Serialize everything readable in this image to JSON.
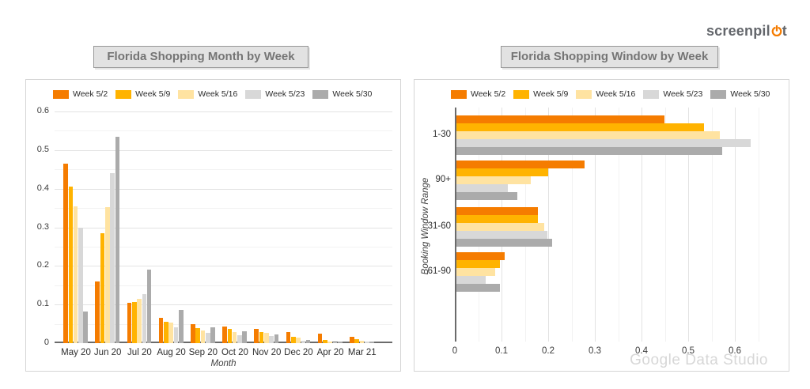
{
  "logo": {
    "text_pre": "screenpil",
    "text_post": "t",
    "full_name": "screenpilot",
    "power_icon_color": "#F57C00",
    "text_color": "#63666B"
  },
  "colors": {
    "week_5_2": "#F57C00",
    "week_5_9": "#FFB300",
    "week_5_16": "#FFE3A1",
    "week_5_23": "#D8D8D8",
    "week_5_30": "#ABABAB",
    "title_box_bg": "#E2E2E2",
    "title_text": "#757575"
  },
  "watermark": "Google Data Studio",
  "chart_data": [
    {
      "type": "bar",
      "orientation": "vertical",
      "title": "Florida Shopping Month by Week",
      "xlabel": "Month",
      "ylabel": "",
      "ylim": [
        0,
        0.6
      ],
      "y_ticks": [
        "0",
        "0.1",
        "0.2",
        "0.3",
        "0.4",
        "0.5",
        "0.6"
      ],
      "grid": "horizontal major 0.1, minor 0.05",
      "legend_position": "top",
      "categories": [
        "May 20",
        "Jun 20",
        "Jul 20",
        "Aug 20",
        "Sep 20",
        "Oct 20",
        "Nov 20",
        "Dec 20",
        "Apr 20",
        "Mar 21"
      ],
      "series": [
        {
          "name": "Week 5/2",
          "color": "#F57C00",
          "values": [
            0.465,
            0.16,
            0.105,
            0.065,
            0.049,
            0.043,
            0.036,
            0.029,
            0.025,
            0.016
          ]
        },
        {
          "name": "Week 5/9",
          "color": "#FFB300",
          "values": [
            0.405,
            0.285,
            0.106,
            0.056,
            0.039,
            0.036,
            0.028,
            0.017,
            0.008,
            0.01
          ]
        },
        {
          "name": "Week 5/16",
          "color": "#FFE3A1",
          "values": [
            0.355,
            0.352,
            0.115,
            0.053,
            0.032,
            0.028,
            0.026,
            0.014,
            0.005,
            0.006
          ]
        },
        {
          "name": "Week 5/23",
          "color": "#D8D8D8",
          "values": [
            0.3,
            0.44,
            0.126,
            0.041,
            0.026,
            0.02,
            0.018,
            0.007,
            0.003,
            0.004
          ]
        },
        {
          "name": "Week 5/30",
          "color": "#ABABAB",
          "values": [
            0.082,
            0.535,
            0.19,
            0.085,
            0.04,
            0.03,
            0.022,
            0.009,
            0.004,
            0.004
          ]
        }
      ]
    },
    {
      "type": "bar",
      "orientation": "horizontal",
      "title": "Florida Shopping Window by Week",
      "xlabel": "",
      "ylabel": "Booking Window Range",
      "xlim": [
        0,
        0.65
      ],
      "x_ticks": [
        "0",
        "0.1",
        "0.2",
        "0.3",
        "0.4",
        "0.5",
        "0.6"
      ],
      "grid": "vertical major 0.1, minor 0.05",
      "legend_position": "top",
      "categories": [
        "1-30",
        "90+",
        "31-60",
        "61-90"
      ],
      "series": [
        {
          "name": "Week 5/2",
          "color": "#F57C00",
          "values": [
            0.445,
            0.275,
            0.175,
            0.103
          ]
        },
        {
          "name": "Week 5/9",
          "color": "#FFB300",
          "values": [
            0.53,
            0.197,
            0.174,
            0.094
          ]
        },
        {
          "name": "Week 5/16",
          "color": "#FFE3A1",
          "values": [
            0.565,
            0.16,
            0.188,
            0.083
          ]
        },
        {
          "name": "Week 5/23",
          "color": "#D8D8D8",
          "values": [
            0.63,
            0.11,
            0.195,
            0.062
          ]
        },
        {
          "name": "Week 5/30",
          "color": "#ABABAB",
          "values": [
            0.57,
            0.13,
            0.205,
            0.093
          ]
        }
      ]
    }
  ]
}
